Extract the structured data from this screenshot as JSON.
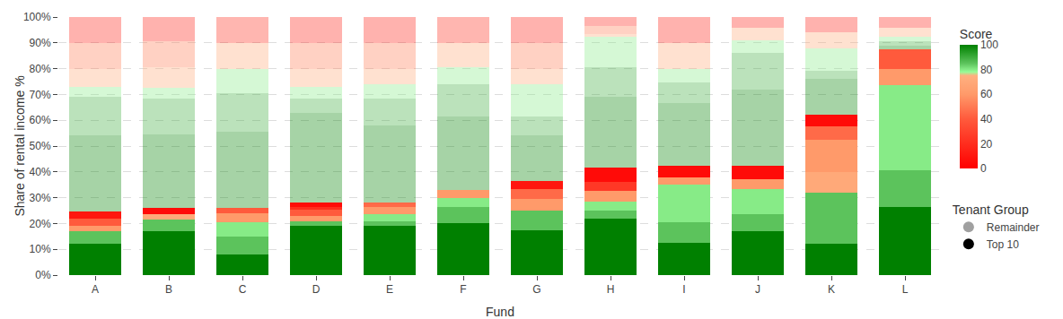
{
  "chart_data": {
    "type": "bar",
    "stacked": true,
    "grid": true,
    "x_label": "Fund",
    "y_label": "Share of rental income %",
    "categories": [
      "A",
      "B",
      "C",
      "D",
      "E",
      "F",
      "G",
      "H",
      "I",
      "J",
      "K",
      "L"
    ],
    "ylim": [
      0,
      100
    ],
    "yticks": [
      {
        "value": 0,
        "label": "0%"
      },
      {
        "value": 10,
        "label": "10%"
      },
      {
        "value": 20,
        "label": "20%"
      },
      {
        "value": 30,
        "label": "30%"
      },
      {
        "value": 40,
        "label": "40%"
      },
      {
        "value": 50,
        "label": "50%"
      },
      {
        "value": 60,
        "label": "60%"
      },
      {
        "value": 70,
        "label": "70%"
      },
      {
        "value": 80,
        "label": "80%"
      },
      {
        "value": 90,
        "label": "90%"
      },
      {
        "value": 100,
        "label": "100%"
      }
    ],
    "color_bar": {
      "title": "Score",
      "range": [
        0,
        100
      ],
      "ticks": [
        0,
        20,
        40,
        60,
        80,
        100
      ]
    },
    "legend_title": "Tenant Group",
    "groups": [
      {
        "name": "Top 10",
        "color": "#000000",
        "marker": "circle"
      },
      {
        "name": "Remainder",
        "color": "#a0a0a0",
        "marker": "circle"
      }
    ],
    "stacks": [
      [
        {
          "group": "Top 10",
          "value": 12,
          "score": 100
        },
        {
          "group": "Top 10",
          "value": 5,
          "score": 85
        },
        {
          "group": "Top 10",
          "value": 2,
          "score": 60
        },
        {
          "group": "Top 10",
          "value": 3,
          "score": 40
        },
        {
          "group": "Top 10",
          "value": 2.5,
          "score": 10
        },
        {
          "group": "Remainder",
          "value": 29.5,
          "score": 100
        },
        {
          "group": "Remainder",
          "value": 15,
          "score": 90
        },
        {
          "group": "Remainder",
          "value": 4,
          "score": 80
        },
        {
          "group": "Remainder",
          "value": 7,
          "score": 70
        },
        {
          "group": "Remainder",
          "value": 10,
          "score": 50
        },
        {
          "group": "Remainder",
          "value": 10,
          "score": 15
        }
      ],
      [
        {
          "group": "Top 10",
          "value": 17,
          "score": 100
        },
        {
          "group": "Top 10",
          "value": 4.5,
          "score": 85
        },
        {
          "group": "Top 10",
          "value": 2,
          "score": 70
        },
        {
          "group": "Top 10",
          "value": 2.5,
          "score": 5
        },
        {
          "group": "Remainder",
          "value": 28.5,
          "score": 100
        },
        {
          "group": "Remainder",
          "value": 14,
          "score": 90
        },
        {
          "group": "Remainder",
          "value": 4,
          "score": 80
        },
        {
          "group": "Remainder",
          "value": 8,
          "score": 70
        },
        {
          "group": "Remainder",
          "value": 10,
          "score": 50
        },
        {
          "group": "Remainder",
          "value": 9.5,
          "score": 15
        }
      ],
      [
        {
          "group": "Top 10",
          "value": 8,
          "score": 100
        },
        {
          "group": "Top 10",
          "value": 7,
          "score": 85
        },
        {
          "group": "Top 10",
          "value": 5.5,
          "score": 80
        },
        {
          "group": "Top 10",
          "value": 3.5,
          "score": 60
        },
        {
          "group": "Top 10",
          "value": 2,
          "score": 40
        },
        {
          "group": "Remainder",
          "value": 29.5,
          "score": 100
        },
        {
          "group": "Remainder",
          "value": 15,
          "score": 90
        },
        {
          "group": "Remainder",
          "value": 9.5,
          "score": 80
        },
        {
          "group": "Remainder",
          "value": 10,
          "score": 70
        },
        {
          "group": "Remainder",
          "value": 10,
          "score": 20
        }
      ],
      [
        {
          "group": "Top 10",
          "value": 19,
          "score": 100
        },
        {
          "group": "Top 10",
          "value": 2,
          "score": 85
        },
        {
          "group": "Top 10",
          "value": 2,
          "score": 60
        },
        {
          "group": "Top 10",
          "value": 2.5,
          "score": 40
        },
        {
          "group": "Top 10",
          "value": 1,
          "score": 20
        },
        {
          "group": "Top 10",
          "value": 1.5,
          "score": 5
        },
        {
          "group": "Remainder",
          "value": 35,
          "score": 100
        },
        {
          "group": "Remainder",
          "value": 5.5,
          "score": 90
        },
        {
          "group": "Remainder",
          "value": 4.5,
          "score": 80
        },
        {
          "group": "Remainder",
          "value": 7,
          "score": 70
        },
        {
          "group": "Remainder",
          "value": 10,
          "score": 50
        },
        {
          "group": "Remainder",
          "value": 10,
          "score": 15
        }
      ],
      [
        {
          "group": "Top 10",
          "value": 19,
          "score": 100
        },
        {
          "group": "Top 10",
          "value": 2,
          "score": 85
        },
        {
          "group": "Top 10",
          "value": 2.5,
          "score": 80
        },
        {
          "group": "Top 10",
          "value": 3,
          "score": 60
        },
        {
          "group": "Top 10",
          "value": 1.5,
          "score": 45
        },
        {
          "group": "Remainder",
          "value": 30,
          "score": 100
        },
        {
          "group": "Remainder",
          "value": 10.5,
          "score": 90
        },
        {
          "group": "Remainder",
          "value": 5.5,
          "score": 80
        },
        {
          "group": "Remainder",
          "value": 6,
          "score": 70
        },
        {
          "group": "Remainder",
          "value": 10,
          "score": 50
        },
        {
          "group": "Remainder",
          "value": 10,
          "score": 15
        }
      ],
      [
        {
          "group": "Top 10",
          "value": 20,
          "score": 100
        },
        {
          "group": "Top 10",
          "value": 6.5,
          "score": 85
        },
        {
          "group": "Top 10",
          "value": 3.5,
          "score": 80
        },
        {
          "group": "Top 10",
          "value": 3,
          "score": 60
        },
        {
          "group": "Remainder",
          "value": 28.5,
          "score": 100
        },
        {
          "group": "Remainder",
          "value": 12.5,
          "score": 90
        },
        {
          "group": "Remainder",
          "value": 6.5,
          "score": 80
        },
        {
          "group": "Remainder",
          "value": 9.5,
          "score": 70
        },
        {
          "group": "Remainder",
          "value": 10,
          "score": 20
        }
      ],
      [
        {
          "group": "Top 10",
          "value": 17.5,
          "score": 100
        },
        {
          "group": "Top 10",
          "value": 7.5,
          "score": 85
        },
        {
          "group": "Top 10",
          "value": 4.5,
          "score": 60
        },
        {
          "group": "Top 10",
          "value": 4,
          "score": 45
        },
        {
          "group": "Top 10",
          "value": 3,
          "score": 10
        },
        {
          "group": "Remainder",
          "value": 17.5,
          "score": 100
        },
        {
          "group": "Remainder",
          "value": 7.5,
          "score": 90
        },
        {
          "group": "Remainder",
          "value": 12.5,
          "score": 80
        },
        {
          "group": "Remainder",
          "value": 6,
          "score": 70
        },
        {
          "group": "Remainder",
          "value": 10,
          "score": 50
        },
        {
          "group": "Remainder",
          "value": 10,
          "score": 15
        }
      ],
      [
        {
          "group": "Top 10",
          "value": 22,
          "score": 100
        },
        {
          "group": "Top 10",
          "value": 3,
          "score": 85
        },
        {
          "group": "Top 10",
          "value": 3.5,
          "score": 80
        },
        {
          "group": "Top 10",
          "value": 4,
          "score": 60
        },
        {
          "group": "Top 10",
          "value": 3.5,
          "score": 25
        },
        {
          "group": "Top 10",
          "value": 5.5,
          "score": 5
        },
        {
          "group": "Remainder",
          "value": 27.5,
          "score": 100
        },
        {
          "group": "Remainder",
          "value": 11.5,
          "score": 90
        },
        {
          "group": "Remainder",
          "value": 12,
          "score": 80
        },
        {
          "group": "Remainder",
          "value": 1,
          "score": 70
        },
        {
          "group": "Remainder",
          "value": 3,
          "score": 50
        },
        {
          "group": "Remainder",
          "value": 3.5,
          "score": 15
        }
      ],
      [
        {
          "group": "Top 10",
          "value": 12.5,
          "score": 100
        },
        {
          "group": "Top 10",
          "value": 8,
          "score": 85
        },
        {
          "group": "Top 10",
          "value": 14.5,
          "score": 80
        },
        {
          "group": "Top 10",
          "value": 3,
          "score": 60
        },
        {
          "group": "Top 10",
          "value": 4.5,
          "score": 5
        },
        {
          "group": "Remainder",
          "value": 24,
          "score": 100
        },
        {
          "group": "Remainder",
          "value": 8,
          "score": 90
        },
        {
          "group": "Remainder",
          "value": 5.5,
          "score": 80
        },
        {
          "group": "Remainder",
          "value": 10,
          "score": 70
        },
        {
          "group": "Remainder",
          "value": 10,
          "score": 15
        }
      ],
      [
        {
          "group": "Top 10",
          "value": 17,
          "score": 100
        },
        {
          "group": "Top 10",
          "value": 6.5,
          "score": 85
        },
        {
          "group": "Top 10",
          "value": 10,
          "score": 80
        },
        {
          "group": "Top 10",
          "value": 3.5,
          "score": 60
        },
        {
          "group": "Top 10",
          "value": 5.5,
          "score": 5
        },
        {
          "group": "Remainder",
          "value": 29.5,
          "score": 100
        },
        {
          "group": "Remainder",
          "value": 14,
          "score": 90
        },
        {
          "group": "Remainder",
          "value": 5,
          "score": 80
        },
        {
          "group": "Remainder",
          "value": 5,
          "score": 70
        },
        {
          "group": "Remainder",
          "value": 4,
          "score": 15
        }
      ],
      [
        {
          "group": "Top 10",
          "value": 12,
          "score": 100
        },
        {
          "group": "Top 10",
          "value": 20,
          "score": 85
        },
        {
          "group": "Top 10",
          "value": 8,
          "score": 70
        },
        {
          "group": "Top 10",
          "value": 12.5,
          "score": 60
        },
        {
          "group": "Top 10",
          "value": 5,
          "score": 45
        },
        {
          "group": "Top 10",
          "value": 4.5,
          "score": 5
        },
        {
          "group": "Remainder",
          "value": 14,
          "score": 100
        },
        {
          "group": "Remainder",
          "value": 3,
          "score": 90
        },
        {
          "group": "Remainder",
          "value": 9,
          "score": 80
        },
        {
          "group": "Remainder",
          "value": 6,
          "score": 70
        },
        {
          "group": "Remainder",
          "value": 6,
          "score": 15
        }
      ],
      [
        {
          "group": "Top 10",
          "value": 26.5,
          "score": 100
        },
        {
          "group": "Top 10",
          "value": 14,
          "score": 85
        },
        {
          "group": "Top 10",
          "value": 33,
          "score": 80
        },
        {
          "group": "Top 10",
          "value": 6.5,
          "score": 60
        },
        {
          "group": "Top 10",
          "value": 7.5,
          "score": 40
        },
        {
          "group": "Remainder",
          "value": 1.5,
          "score": 100
        },
        {
          "group": "Remainder",
          "value": 1.5,
          "score": 90
        },
        {
          "group": "Remainder",
          "value": 2,
          "score": 80
        },
        {
          "group": "Remainder",
          "value": 3.5,
          "score": 70
        },
        {
          "group": "Remainder",
          "value": 4,
          "score": 15
        }
      ]
    ]
  }
}
